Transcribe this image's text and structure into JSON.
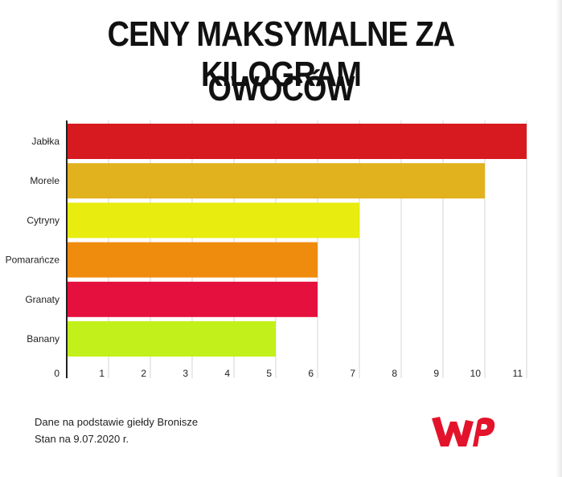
{
  "title_line1": "CENY MAKSYMALNE ZA KILOGRAM",
  "title_line2": "OWOCÓW",
  "chart_data": {
    "type": "bar",
    "orientation": "horizontal",
    "categories": [
      "Jabłka",
      "Morele",
      "Cytryny",
      "Pomarańcze",
      "Granaty",
      "Banany"
    ],
    "values": [
      11,
      10,
      7,
      6,
      6,
      5
    ],
    "colors": [
      "#d71a1f",
      "#e1b11e",
      "#e8ec0f",
      "#f08c0d",
      "#e5103e",
      "#c2f01a"
    ],
    "xlim": [
      0,
      11
    ],
    "xticks": [
      0,
      1,
      2,
      3,
      4,
      5,
      6,
      7,
      8,
      9,
      10,
      11
    ],
    "grid": true,
    "gridColor": "#d5d5d5",
    "axisColor": "#222222"
  },
  "footnote": {
    "line1": "Dane na podstawie giełdy Bronisze",
    "line2": "Stan na 9.07.2020 r."
  },
  "logo": {
    "name": "wp-logo",
    "text": "WP",
    "color": "#e4132c"
  }
}
